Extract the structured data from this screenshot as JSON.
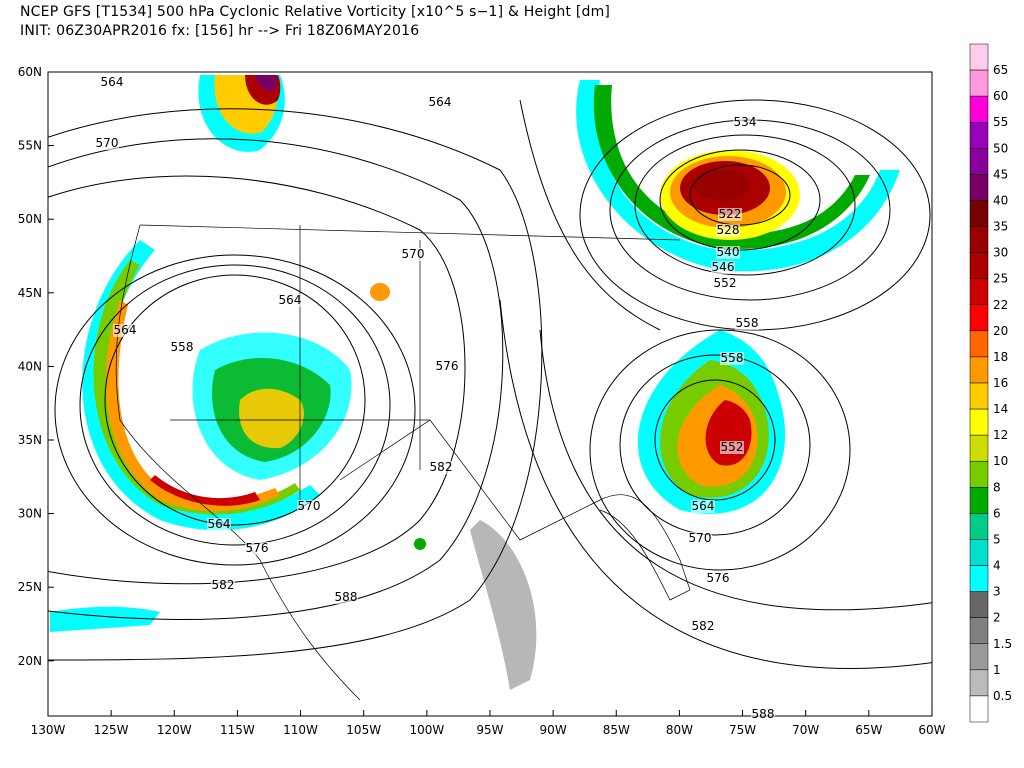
{
  "header": {
    "title": "NCEP GFS [T1534] 500 hPa Cyclonic Relative Vorticity [x10^5 s−1] & Height [dm]",
    "subtitle": "INIT: 06Z30APR2016 fx: [156] hr --> Fri 18Z06MAY2016"
  },
  "map": {
    "lat_labels": [
      "60N",
      "55N",
      "50N",
      "45N",
      "40N",
      "35N",
      "30N",
      "25N",
      "20N"
    ],
    "lon_labels": [
      "130W",
      "125W",
      "120W",
      "115W",
      "110W",
      "105W",
      "100W",
      "95W",
      "90W",
      "85W",
      "80W",
      "75W",
      "70W",
      "65W",
      "60W"
    ],
    "height_contour_labels": [
      "564",
      "570",
      "564",
      "534",
      "522",
      "528",
      "540",
      "546",
      "552",
      "558",
      "558",
      "552",
      "564",
      "570",
      "576",
      "582",
      "588",
      "570",
      "564",
      "564",
      "558",
      "576",
      "582",
      "570",
      "564",
      "576",
      "582",
      "588"
    ],
    "land_color": "#ffffff",
    "contour_color": "#000000"
  },
  "colorbar": {
    "labels": [
      "65",
      "60",
      "55",
      "50",
      "45",
      "40",
      "35",
      "30",
      "25",
      "22",
      "20",
      "18",
      "16",
      "14",
      "12",
      "10",
      "8",
      "6",
      "5",
      "4",
      "3",
      "2",
      "1.5",
      "1",
      "0.5"
    ],
    "colors": [
      "#ffccee",
      "#ff99dd",
      "#ff00dd",
      "#9900bb",
      "#880099",
      "#770066",
      "#770000",
      "#990000",
      "#aa0000",
      "#cc0000",
      "#ff0000",
      "#ff6600",
      "#ff9900",
      "#ffcc00",
      "#ffff00",
      "#ccdd00",
      "#77cc00",
      "#00aa00",
      "#00cc88",
      "#00e0cc",
      "#00ffff",
      "#666666",
      "#808080",
      "#999999",
      "#bbbbbb",
      "#ffffff"
    ]
  }
}
